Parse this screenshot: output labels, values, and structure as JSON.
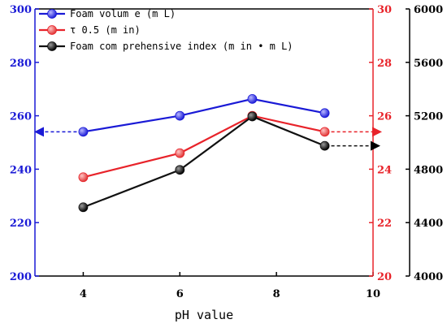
{
  "chart_data": {
    "type": "line",
    "xlabel": "pH value",
    "x_ticks": [
      "4",
      "6",
      "8",
      "10"
    ],
    "xlim": [
      3,
      10
    ],
    "grid": false,
    "legend_position": "top-left",
    "axes": [
      {
        "id": "left",
        "color": "#1a1ad6",
        "ylim": [
          200,
          300
        ],
        "ticks": [
          "200",
          "220",
          "240",
          "260",
          "280",
          "300"
        ]
      },
      {
        "id": "right1",
        "color": "#e8232a",
        "ylim": [
          20,
          30
        ],
        "ticks": [
          "20",
          "22",
          "24",
          "26",
          "28",
          "30"
        ]
      },
      {
        "id": "right2",
        "color": "#000000",
        "ylim": [
          4000,
          6000
        ],
        "ticks": [
          "4000",
          "4400",
          "4800",
          "5200",
          "5600",
          "6000"
        ]
      }
    ],
    "series": [
      {
        "name": "Foam volum e (m L)",
        "axis": "left",
        "color": "#1a1ad6",
        "marker_color": "#3b3bf0",
        "x": [
          4,
          6,
          7.5,
          9
        ],
        "y": [
          254,
          260,
          266.3,
          261
        ]
      },
      {
        "name": "τ 0.5 (m in)",
        "axis": "right1",
        "color": "#e8232a",
        "marker_color": "#e85a5a",
        "x": [
          4,
          6,
          7.5,
          9
        ],
        "y": [
          23.7,
          24.6,
          26.0,
          25.4
        ]
      },
      {
        "name": "Foam com prehensive index (m in • m L)",
        "axis": "right2",
        "color": "#111111",
        "marker_color": "#1a1a1a",
        "x": [
          4,
          6,
          7.5,
          9
        ],
        "y": [
          4515,
          4795,
          5195,
          4975
        ]
      }
    ]
  }
}
